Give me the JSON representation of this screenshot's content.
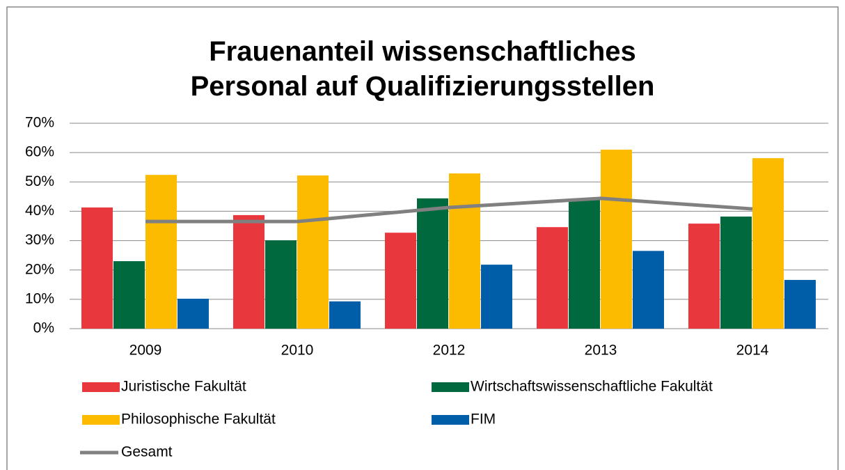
{
  "chart_data": {
    "type": "bar",
    "title": "Frauenanteil wissenschaftliches Personal auf Qualifizierungsstellen",
    "categories": [
      "2009",
      "2010",
      "2012",
      "2013",
      "2014"
    ],
    "series": [
      {
        "name": "Juristische Fakultät",
        "color": "#e8383d",
        "values": [
          41.3,
          38.7,
          32.7,
          34.6,
          35.8
        ]
      },
      {
        "name": "Wirtschaftswissenschaftliche Fakultät",
        "color": "#006a3e",
        "values": [
          23,
          30.1,
          44.4,
          43.9,
          38.2
        ]
      },
      {
        "name": "Philosophische Fakultät",
        "color": "#fdbb00",
        "values": [
          52.4,
          52.2,
          52.9,
          61,
          58.1
        ]
      },
      {
        "name": "FIM",
        "color": "#005ea8",
        "values": [
          10.2,
          9.3,
          21.8,
          26.5,
          16.6
        ]
      },
      {
        "name": "Gesamt",
        "color": "#808080",
        "type": "line",
        "values": [
          36.5,
          36.5,
          41.3,
          44.4,
          40.8
        ]
      }
    ],
    "ylim": [
      0,
      70
    ],
    "yticks": [
      {
        "value": 0,
        "label": "0%"
      },
      {
        "value": 10,
        "label": "10%"
      },
      {
        "value": 20,
        "label": "20%"
      },
      {
        "value": 30,
        "label": "30%"
      },
      {
        "value": 40,
        "label": "40%"
      },
      {
        "value": 50,
        "label": "50%"
      },
      {
        "value": 60,
        "label": "60%"
      },
      {
        "value": 70,
        "label": "70%"
      }
    ],
    "grid": true
  }
}
